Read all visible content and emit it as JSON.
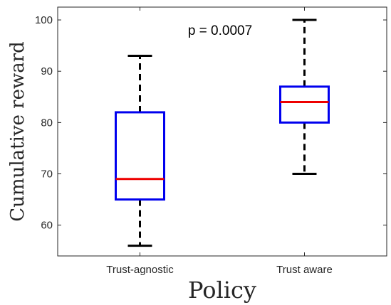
{
  "chart_data": {
    "type": "box",
    "title": "",
    "xlabel": "Policy",
    "ylabel": "Cumulative reward",
    "ylim": [
      54,
      102.5
    ],
    "yticks": [
      60,
      70,
      80,
      90,
      100
    ],
    "grid": false,
    "annotation": "p = 0.0007",
    "colors": {
      "box": "#0000ee",
      "median": "#ee0000",
      "whisker": "#000000",
      "axis": "#262626"
    },
    "categories": [
      "Trust-agnostic",
      "Trust aware"
    ],
    "boxes": [
      {
        "category": "Trust-agnostic",
        "min": 56,
        "q1": 65,
        "median": 69,
        "q3": 82,
        "max": 93
      },
      {
        "category": "Trust aware",
        "min": 70,
        "q1": 80,
        "median": 84,
        "q3": 87,
        "max": 100
      }
    ]
  }
}
